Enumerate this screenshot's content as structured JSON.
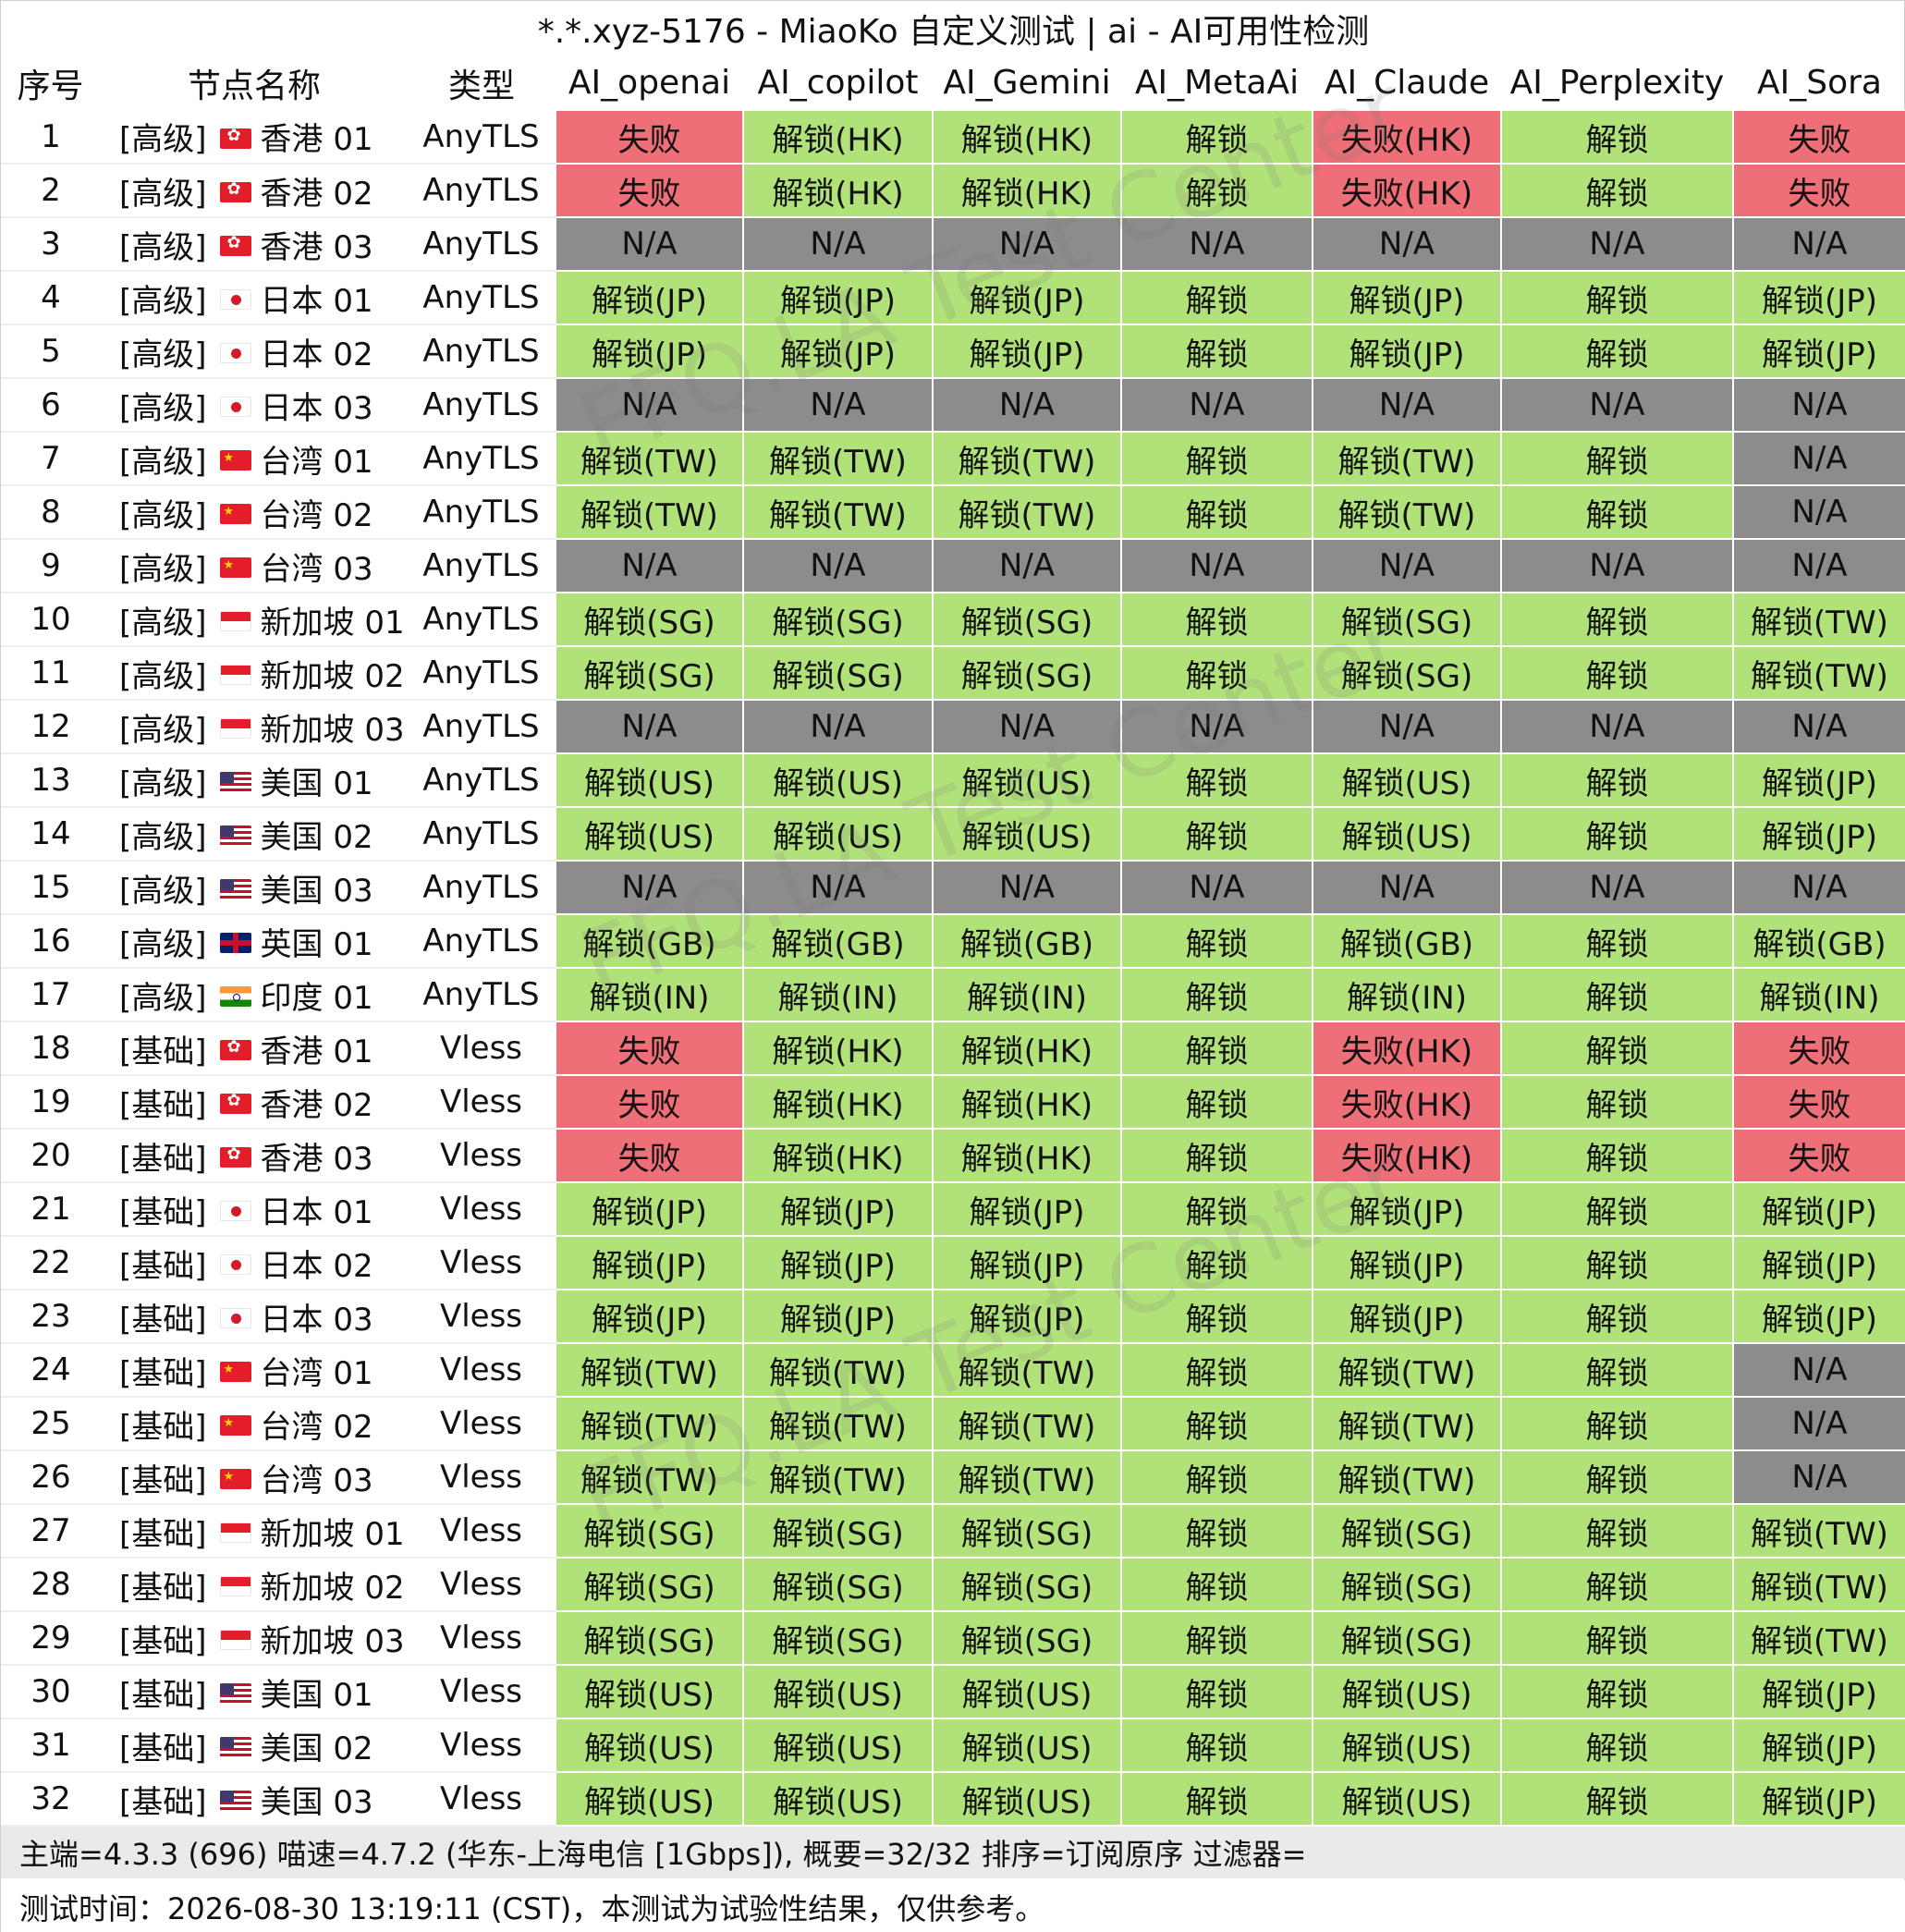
{
  "window": {
    "title": "*.*.xyz-5176 - MiaoKo 自定义测试 | ai - AI可用性检测"
  },
  "watermark": {
    "text": "FFQ.LA Test Center"
  },
  "colors": {
    "unlock": "#b1e279",
    "fail": "#ef6f78",
    "na": "#8c8c8c"
  },
  "table": {
    "columns": [
      "序号",
      "节点名称",
      "类型",
      "AI_openai",
      "AI_copilot",
      "AI_Gemini",
      "AI_MetaAi",
      "AI_Claude",
      "AI_Perplexity",
      "AI_Sora"
    ],
    "rows": [
      {
        "idx": "1",
        "tier": "[高级]",
        "flag": "hk-flag-icon",
        "region": "香港 01",
        "type": "AnyTLS",
        "cells": [
          "失败",
          "解锁(HK)",
          "解锁(HK)",
          "解锁",
          "失败(HK)",
          "解锁",
          "失败"
        ]
      },
      {
        "idx": "2",
        "tier": "[高级]",
        "flag": "hk-flag-icon",
        "region": "香港 02",
        "type": "AnyTLS",
        "cells": [
          "失败",
          "解锁(HK)",
          "解锁(HK)",
          "解锁",
          "失败(HK)",
          "解锁",
          "失败"
        ]
      },
      {
        "idx": "3",
        "tier": "[高级]",
        "flag": "hk-flag-icon",
        "region": "香港 03",
        "type": "AnyTLS",
        "cells": [
          "N/A",
          "N/A",
          "N/A",
          "N/A",
          "N/A",
          "N/A",
          "N/A"
        ]
      },
      {
        "idx": "4",
        "tier": "[高级]",
        "flag": "jp-flag-icon",
        "region": "日本 01",
        "type": "AnyTLS",
        "cells": [
          "解锁(JP)",
          "解锁(JP)",
          "解锁(JP)",
          "解锁",
          "解锁(JP)",
          "解锁",
          "解锁(JP)"
        ]
      },
      {
        "idx": "5",
        "tier": "[高级]",
        "flag": "jp-flag-icon",
        "region": "日本 02",
        "type": "AnyTLS",
        "cells": [
          "解锁(JP)",
          "解锁(JP)",
          "解锁(JP)",
          "解锁",
          "解锁(JP)",
          "解锁",
          "解锁(JP)"
        ]
      },
      {
        "idx": "6",
        "tier": "[高级]",
        "flag": "jp-flag-icon",
        "region": "日本 03",
        "type": "AnyTLS",
        "cells": [
          "N/A",
          "N/A",
          "N/A",
          "N/A",
          "N/A",
          "N/A",
          "N/A"
        ]
      },
      {
        "idx": "7",
        "tier": "[高级]",
        "flag": "cn-flag-icon",
        "region": "台湾 01",
        "type": "AnyTLS",
        "cells": [
          "解锁(TW)",
          "解锁(TW)",
          "解锁(TW)",
          "解锁",
          "解锁(TW)",
          "解锁",
          "N/A"
        ]
      },
      {
        "idx": "8",
        "tier": "[高级]",
        "flag": "cn-flag-icon",
        "region": "台湾 02",
        "type": "AnyTLS",
        "cells": [
          "解锁(TW)",
          "解锁(TW)",
          "解锁(TW)",
          "解锁",
          "解锁(TW)",
          "解锁",
          "N/A"
        ]
      },
      {
        "idx": "9",
        "tier": "[高级]",
        "flag": "cn-flag-icon",
        "region": "台湾 03",
        "type": "AnyTLS",
        "cells": [
          "N/A",
          "N/A",
          "N/A",
          "N/A",
          "N/A",
          "N/A",
          "N/A"
        ]
      },
      {
        "idx": "10",
        "tier": "[高级]",
        "flag": "sg-flag-icon",
        "region": "新加坡 01",
        "type": "AnyTLS",
        "cells": [
          "解锁(SG)",
          "解锁(SG)",
          "解锁(SG)",
          "解锁",
          "解锁(SG)",
          "解锁",
          "解锁(TW)"
        ]
      },
      {
        "idx": "11",
        "tier": "[高级]",
        "flag": "sg-flag-icon",
        "region": "新加坡 02",
        "type": "AnyTLS",
        "cells": [
          "解锁(SG)",
          "解锁(SG)",
          "解锁(SG)",
          "解锁",
          "解锁(SG)",
          "解锁",
          "解锁(TW)"
        ]
      },
      {
        "idx": "12",
        "tier": "[高级]",
        "flag": "sg-flag-icon",
        "region": "新加坡 03",
        "type": "AnyTLS",
        "cells": [
          "N/A",
          "N/A",
          "N/A",
          "N/A",
          "N/A",
          "N/A",
          "N/A"
        ]
      },
      {
        "idx": "13",
        "tier": "[高级]",
        "flag": "us-flag-icon",
        "region": "美国 01",
        "type": "AnyTLS",
        "cells": [
          "解锁(US)",
          "解锁(US)",
          "解锁(US)",
          "解锁",
          "解锁(US)",
          "解锁",
          "解锁(JP)"
        ]
      },
      {
        "idx": "14",
        "tier": "[高级]",
        "flag": "us-flag-icon",
        "region": "美国 02",
        "type": "AnyTLS",
        "cells": [
          "解锁(US)",
          "解锁(US)",
          "解锁(US)",
          "解锁",
          "解锁(US)",
          "解锁",
          "解锁(JP)"
        ]
      },
      {
        "idx": "15",
        "tier": "[高级]",
        "flag": "us-flag-icon",
        "region": "美国 03",
        "type": "AnyTLS",
        "cells": [
          "N/A",
          "N/A",
          "N/A",
          "N/A",
          "N/A",
          "N/A",
          "N/A"
        ]
      },
      {
        "idx": "16",
        "tier": "[高级]",
        "flag": "gb-flag-icon",
        "region": "英国 01",
        "type": "AnyTLS",
        "cells": [
          "解锁(GB)",
          "解锁(GB)",
          "解锁(GB)",
          "解锁",
          "解锁(GB)",
          "解锁",
          "解锁(GB)"
        ]
      },
      {
        "idx": "17",
        "tier": "[高级]",
        "flag": "in-flag-icon",
        "region": "印度 01",
        "type": "AnyTLS",
        "cells": [
          "解锁(IN)",
          "解锁(IN)",
          "解锁(IN)",
          "解锁",
          "解锁(IN)",
          "解锁",
          "解锁(IN)"
        ]
      },
      {
        "idx": "18",
        "tier": "[基础]",
        "flag": "hk-flag-icon",
        "region": "香港 01",
        "type": "Vless",
        "cells": [
          "失败",
          "解锁(HK)",
          "解锁(HK)",
          "解锁",
          "失败(HK)",
          "解锁",
          "失败"
        ]
      },
      {
        "idx": "19",
        "tier": "[基础]",
        "flag": "hk-flag-icon",
        "region": "香港 02",
        "type": "Vless",
        "cells": [
          "失败",
          "解锁(HK)",
          "解锁(HK)",
          "解锁",
          "失败(HK)",
          "解锁",
          "失败"
        ]
      },
      {
        "idx": "20",
        "tier": "[基础]",
        "flag": "hk-flag-icon",
        "region": "香港 03",
        "type": "Vless",
        "cells": [
          "失败",
          "解锁(HK)",
          "解锁(HK)",
          "解锁",
          "失败(HK)",
          "解锁",
          "失败"
        ]
      },
      {
        "idx": "21",
        "tier": "[基础]",
        "flag": "jp-flag-icon",
        "region": "日本 01",
        "type": "Vless",
        "cells": [
          "解锁(JP)",
          "解锁(JP)",
          "解锁(JP)",
          "解锁",
          "解锁(JP)",
          "解锁",
          "解锁(JP)"
        ]
      },
      {
        "idx": "22",
        "tier": "[基础]",
        "flag": "jp-flag-icon",
        "region": "日本 02",
        "type": "Vless",
        "cells": [
          "解锁(JP)",
          "解锁(JP)",
          "解锁(JP)",
          "解锁",
          "解锁(JP)",
          "解锁",
          "解锁(JP)"
        ]
      },
      {
        "idx": "23",
        "tier": "[基础]",
        "flag": "jp-flag-icon",
        "region": "日本 03",
        "type": "Vless",
        "cells": [
          "解锁(JP)",
          "解锁(JP)",
          "解锁(JP)",
          "解锁",
          "解锁(JP)",
          "解锁",
          "解锁(JP)"
        ]
      },
      {
        "idx": "24",
        "tier": "[基础]",
        "flag": "cn-flag-icon",
        "region": "台湾 01",
        "type": "Vless",
        "cells": [
          "解锁(TW)",
          "解锁(TW)",
          "解锁(TW)",
          "解锁",
          "解锁(TW)",
          "解锁",
          "N/A"
        ]
      },
      {
        "idx": "25",
        "tier": "[基础]",
        "flag": "cn-flag-icon",
        "region": "台湾 02",
        "type": "Vless",
        "cells": [
          "解锁(TW)",
          "解锁(TW)",
          "解锁(TW)",
          "解锁",
          "解锁(TW)",
          "解锁",
          "N/A"
        ]
      },
      {
        "idx": "26",
        "tier": "[基础]",
        "flag": "cn-flag-icon",
        "region": "台湾 03",
        "type": "Vless",
        "cells": [
          "解锁(TW)",
          "解锁(TW)",
          "解锁(TW)",
          "解锁",
          "解锁(TW)",
          "解锁",
          "N/A"
        ]
      },
      {
        "idx": "27",
        "tier": "[基础]",
        "flag": "sg-flag-icon",
        "region": "新加坡 01",
        "type": "Vless",
        "cells": [
          "解锁(SG)",
          "解锁(SG)",
          "解锁(SG)",
          "解锁",
          "解锁(SG)",
          "解锁",
          "解锁(TW)"
        ]
      },
      {
        "idx": "28",
        "tier": "[基础]",
        "flag": "sg-flag-icon",
        "region": "新加坡 02",
        "type": "Vless",
        "cells": [
          "解锁(SG)",
          "解锁(SG)",
          "解锁(SG)",
          "解锁",
          "解锁(SG)",
          "解锁",
          "解锁(TW)"
        ]
      },
      {
        "idx": "29",
        "tier": "[基础]",
        "flag": "sg-flag-icon",
        "region": "新加坡 03",
        "type": "Vless",
        "cells": [
          "解锁(SG)",
          "解锁(SG)",
          "解锁(SG)",
          "解锁",
          "解锁(SG)",
          "解锁",
          "解锁(TW)"
        ]
      },
      {
        "idx": "30",
        "tier": "[基础]",
        "flag": "us-flag-icon",
        "region": "美国 01",
        "type": "Vless",
        "cells": [
          "解锁(US)",
          "解锁(US)",
          "解锁(US)",
          "解锁",
          "解锁(US)",
          "解锁",
          "解锁(JP)"
        ]
      },
      {
        "idx": "31",
        "tier": "[基础]",
        "flag": "us-flag-icon",
        "region": "美国 02",
        "type": "Vless",
        "cells": [
          "解锁(US)",
          "解锁(US)",
          "解锁(US)",
          "解锁",
          "解锁(US)",
          "解锁",
          "解锁(JP)"
        ]
      },
      {
        "idx": "32",
        "tier": "[基础]",
        "flag": "us-flag-icon",
        "region": "美国 03",
        "type": "Vless",
        "cells": [
          "解锁(US)",
          "解锁(US)",
          "解锁(US)",
          "解锁",
          "解锁(US)",
          "解锁",
          "解锁(JP)"
        ]
      }
    ]
  },
  "footer": {
    "line1": "主端=4.3.3 (696) 喵速=4.7.2 (华东-上海电信 [1Gbps]), 概要=32/32 排序=订阅原序 过滤器=",
    "line2": "测试时间：2026-08-30 13:19:11 (CST)，本测试为试验性结果，仅供参考。"
  }
}
